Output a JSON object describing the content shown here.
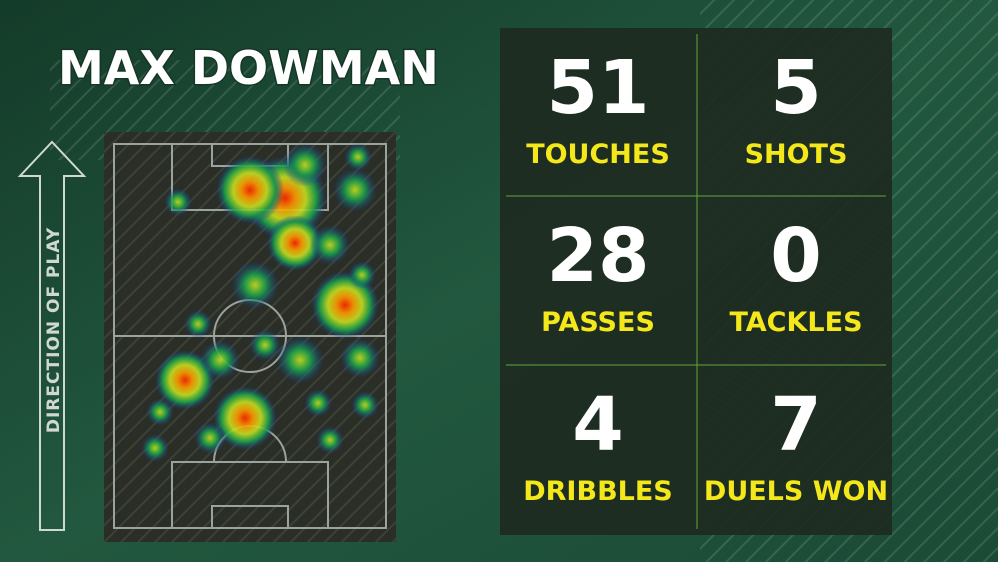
{
  "title": "MAX DOWMAN",
  "direction_label": "DIRECTION OF PLAY",
  "stats": [
    {
      "value": 51,
      "label": "TOUCHES"
    },
    {
      "value": 5,
      "label": "SHOTS"
    },
    {
      "value": 28,
      "label": "PASSES"
    },
    {
      "value": 0,
      "label": "TACKLES"
    },
    {
      "value": 4,
      "label": "DRIBBLES"
    },
    {
      "value": 7,
      "label": "DUELS WON"
    }
  ]
}
